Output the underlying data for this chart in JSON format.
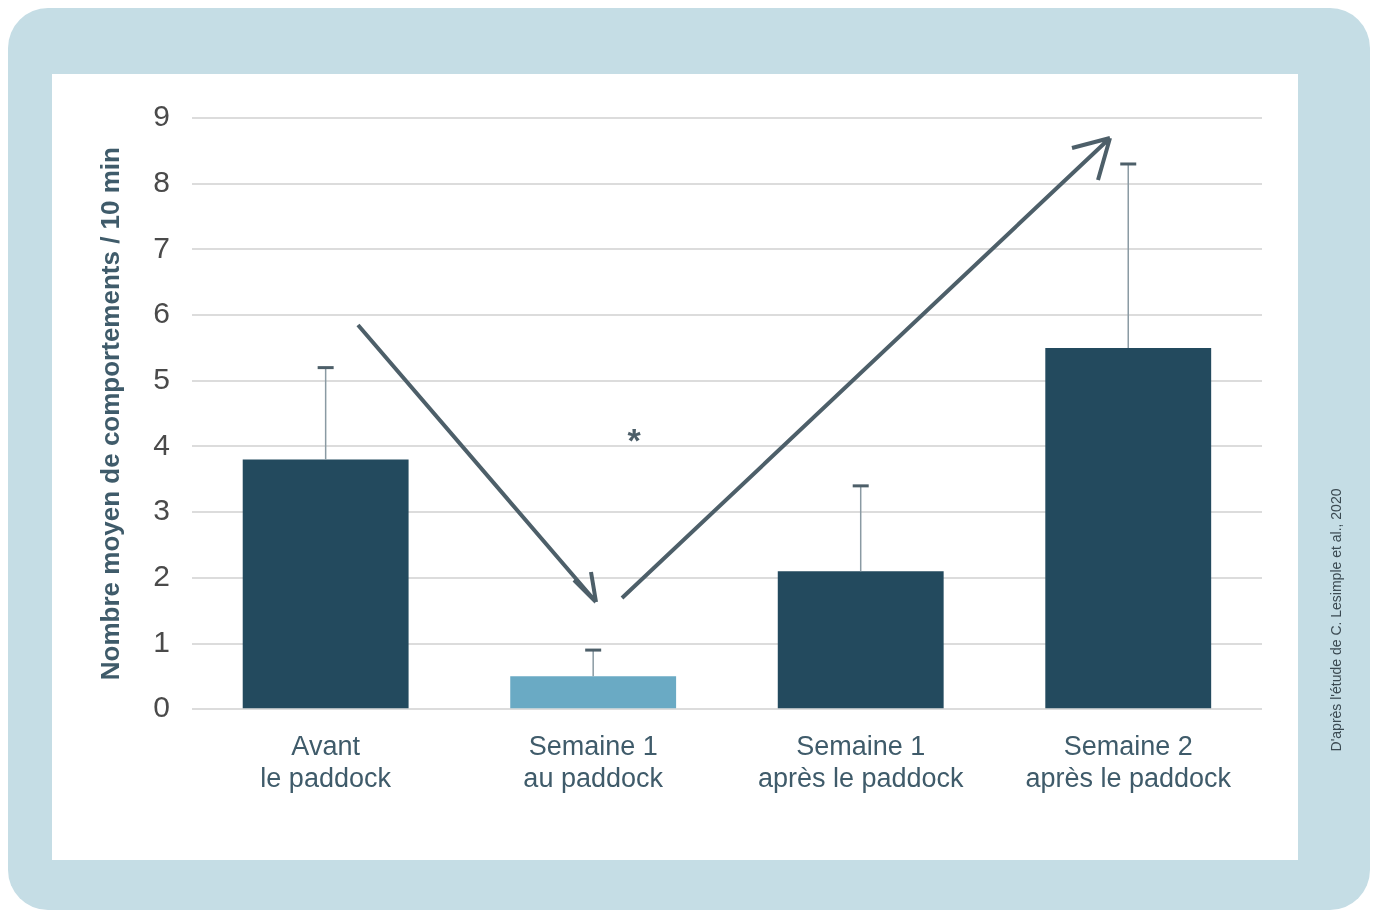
{
  "chart_data": {
    "type": "bar",
    "ylabel": "Nombre moyen de comportements / 10 min",
    "categories": [
      "Avant\nle paddock",
      "Semaine 1\nau paddock",
      "Semaine 1\naprès le paddock",
      "Semaine 2\naprès le paddock"
    ],
    "values": [
      3.8,
      0.5,
      2.1,
      5.5
    ],
    "colors": [
      "#234a5e",
      "#6aaac4",
      "#234a5e",
      "#234a5e"
    ],
    "errors": [
      [
        3.8,
        5.2
      ],
      [
        0.5,
        0.9
      ],
      [
        2.1,
        3.4
      ],
      [
        5.5,
        8.3
      ]
    ],
    "ylim": [
      0,
      9
    ],
    "yticks": [
      0,
      1,
      2,
      3,
      4,
      5,
      6,
      7,
      8,
      9
    ],
    "grid": "y",
    "legend": false,
    "annotations": [
      "*",
      "D'après l'étude de C. Lesimple et al., 2020"
    ]
  }
}
